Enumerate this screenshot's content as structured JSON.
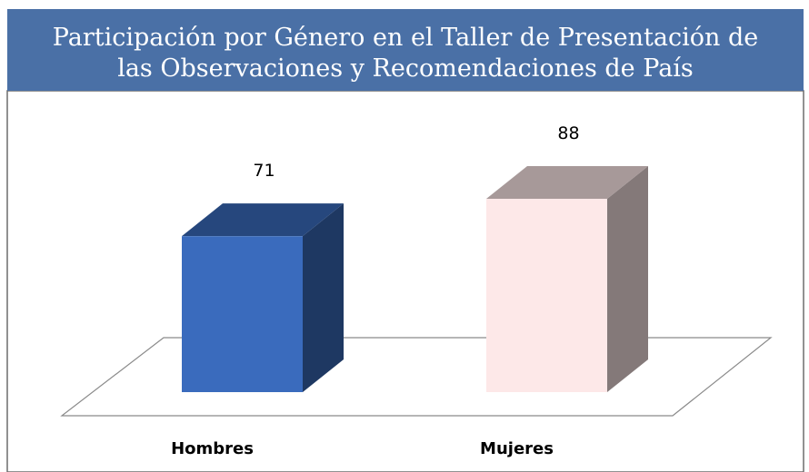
{
  "chart_data": {
    "type": "bar3d",
    "title": [
      "Participación por Género en el Taller de Presentación de",
      "las Observaciones y Recomendaciones de País"
    ],
    "categories": [
      "Hombres",
      "Mujeres"
    ],
    "values": [
      71,
      88
    ],
    "colors": [
      "#3a6bbd",
      "#fde8e8"
    ]
  }
}
